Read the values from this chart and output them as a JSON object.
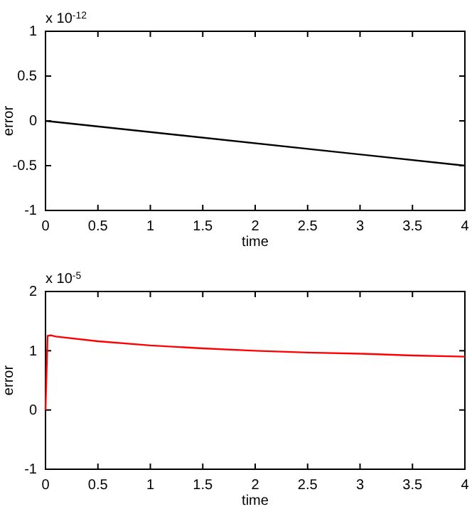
{
  "chart_data": [
    {
      "type": "line",
      "xlabel": "time",
      "ylabel": "error",
      "annotations": [
        "x 10$^{-12}$"
      ],
      "xlim": [
        0,
        4
      ],
      "xticks": [
        0,
        0.5,
        1,
        1.5,
        2,
        2.5,
        3,
        3.5,
        4
      ],
      "ylim": [
        -1,
        1
      ],
      "yticks": [
        -1,
        -0.5,
        0,
        0.5,
        1
      ],
      "grid": false,
      "series": [
        {
          "color": "#000000",
          "x": [
            0,
            4
          ],
          "values": [
            0,
            -0.5
          ]
        }
      ]
    },
    {
      "type": "line",
      "xlabel": "time",
      "ylabel": "error",
      "annotations": [
        "x 10$^{-5}$"
      ],
      "xlim": [
        0,
        4
      ],
      "xticks": [
        0,
        0.5,
        1,
        1.5,
        2,
        2.5,
        3,
        3.5,
        4
      ],
      "ylim": [
        -1,
        2
      ],
      "yticks": [
        -1,
        0,
        1,
        2
      ],
      "grid": false,
      "series": [
        {
          "color": "#ff0000",
          "x": [
            0,
            0.02,
            0.05,
            0.1,
            0.5,
            1,
            1.5,
            2,
            2.5,
            3,
            3.5,
            4
          ],
          "values": [
            0,
            1.25,
            1.26,
            1.24,
            1.16,
            1.09,
            1.04,
            1.0,
            0.97,
            0.95,
            0.92,
            0.9
          ]
        }
      ]
    }
  ]
}
